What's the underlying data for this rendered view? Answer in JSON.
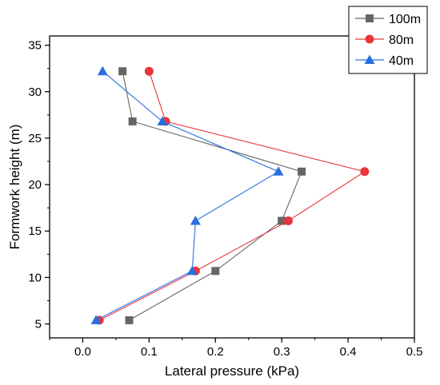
{
  "chart_data": {
    "type": "line",
    "title": "",
    "xlabel": "Lateral pressure (kPa)",
    "ylabel": "Formwork height (m)",
    "xlim": [
      -0.05,
      0.5
    ],
    "ylim": [
      3.5,
      36
    ],
    "xticks": [
      0.0,
      0.1,
      0.2,
      0.3,
      0.4,
      0.5
    ],
    "xtick_labels": [
      "0.0",
      "0.1",
      "0.2",
      "0.3",
      "0.4",
      "0.5"
    ],
    "yticks": [
      5,
      10,
      15,
      20,
      25,
      30,
      35
    ],
    "ytick_labels": [
      "5",
      "10",
      "15",
      "20",
      "25",
      "30",
      "35"
    ],
    "grid": false,
    "legend_position": "top-right",
    "series": [
      {
        "name": "100m",
        "color": "#666666",
        "marker": "square",
        "points": [
          [
            0.06,
            32.2
          ],
          [
            0.075,
            26.8
          ],
          [
            0.33,
            21.4
          ],
          [
            0.3,
            16.1
          ],
          [
            0.2,
            10.7
          ],
          [
            0.07,
            5.4
          ]
        ]
      },
      {
        "name": "80m",
        "color": "#e8363a",
        "marker": "circle",
        "points": [
          [
            0.1,
            32.2
          ],
          [
            0.125,
            26.8
          ],
          [
            0.425,
            21.4
          ],
          [
            0.31,
            16.1
          ],
          [
            0.17,
            10.7
          ],
          [
            0.025,
            5.4
          ]
        ]
      },
      {
        "name": "40m",
        "color": "#2a6fe0",
        "marker": "triangle",
        "points": [
          [
            0.03,
            32.2
          ],
          [
            0.12,
            26.8
          ],
          [
            0.295,
            21.4
          ],
          [
            0.17,
            16.1
          ],
          [
            0.165,
            10.7
          ],
          [
            0.02,
            5.4
          ]
        ]
      }
    ]
  }
}
